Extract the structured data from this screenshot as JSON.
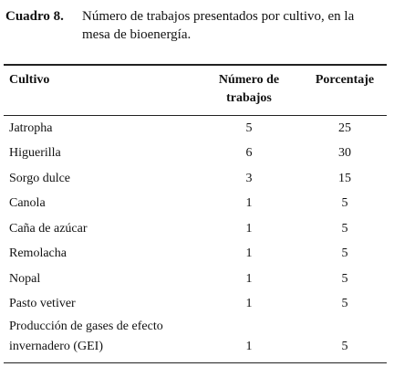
{
  "caption": {
    "label": "Cuadro 8.",
    "text": "Número de trabajos presentados por cultivo, en la mesa de bioenergía."
  },
  "table": {
    "header": [
      "Cultivo",
      "Número de trabajos",
      "Porcentaje"
    ],
    "rows": [
      [
        "Jatropha",
        5,
        25
      ],
      [
        "Higuerilla",
        6,
        30
      ],
      [
        "Sorgo dulce",
        3,
        15
      ],
      [
        "Canola",
        1,
        5
      ],
      [
        "Caña de azúcar",
        1,
        5
      ],
      [
        "Remolacha",
        1,
        5
      ],
      [
        "Nopal",
        1,
        5
      ],
      [
        "Pasto vetiver",
        1,
        5
      ],
      [
        "Producción de gases de efecto invernadero (GEI)",
        1,
        5
      ]
    ]
  }
}
